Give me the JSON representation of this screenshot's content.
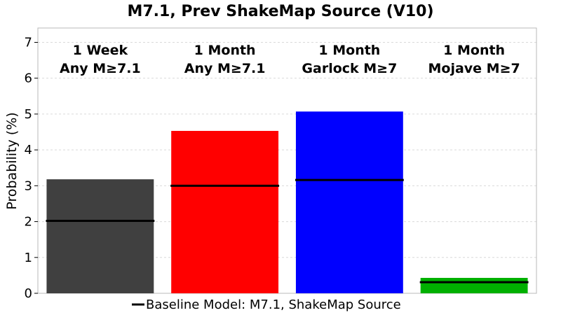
{
  "chart_data": {
    "type": "bar",
    "title": "M7.1, Prev ShakeMap Source (V10)",
    "ylabel": "Probability (%)",
    "xlabel": "",
    "ylim": [
      0,
      7.4
    ],
    "yticks": [
      "0",
      "1",
      "2",
      "3",
      "4",
      "5",
      "6",
      "7"
    ],
    "grid": true,
    "categories": [
      {
        "line1": "1 Week",
        "line2": "Any M≥7.1"
      },
      {
        "line1": "1 Month",
        "line2": "Any M≥7.1"
      },
      {
        "line1": "1 Month",
        "line2": "Garlock M≥7"
      },
      {
        "line1": "1 Month",
        "line2": "Mojave M≥7"
      }
    ],
    "values": [
      3.18,
      4.53,
      5.07,
      0.43
    ],
    "baseline_values": [
      2.02,
      3.0,
      3.16,
      0.31
    ],
    "bar_colors": [
      "#404040",
      "#ff0000",
      "#0000ff",
      "#00b000"
    ],
    "baseline_color": "#000000",
    "legend": {
      "label": "Baseline Model: M7.1, ShakeMap Source",
      "placement": "bottom-center"
    }
  }
}
